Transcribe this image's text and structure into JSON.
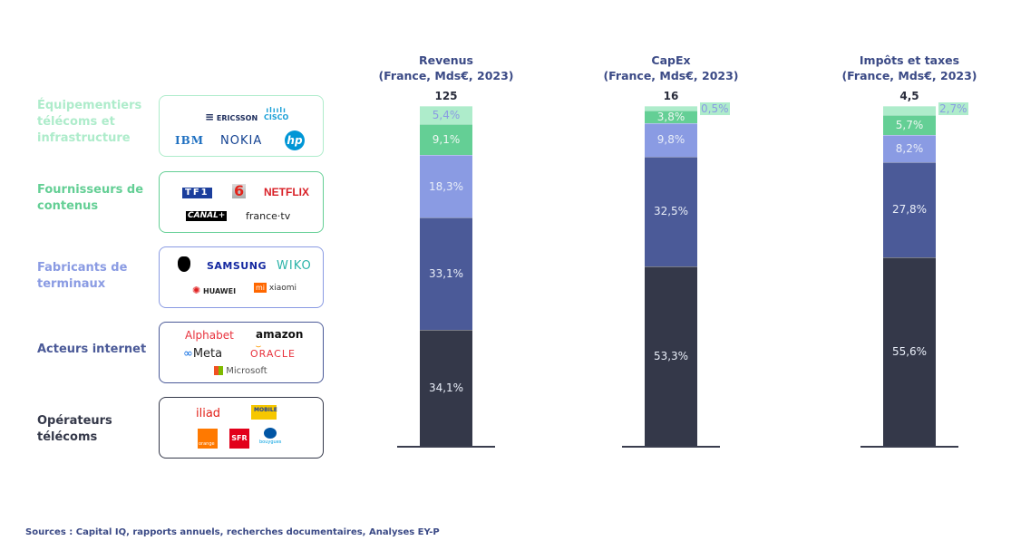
{
  "categories": [
    {
      "id": "equipementiers",
      "label": "Équipementiers télécoms et infrastructure",
      "label_lines": [
        "Équipementiers",
        "télécoms et",
        "infrastructure"
      ],
      "color": "#aeeccb",
      "logos": [
        "ERICSSON",
        "CISCO",
        "IBM",
        "NOKIA",
        "hp"
      ]
    },
    {
      "id": "contenus",
      "label": "Fournisseurs de contenus",
      "label_lines": [
        "Fournisseurs de",
        "contenus"
      ],
      "color": "#64cf95",
      "logos": [
        "TF1",
        "M6",
        "NETFLIX",
        "CANAL+",
        "france·tv"
      ]
    },
    {
      "id": "terminaux",
      "label": "Fabricants de terminaux",
      "label_lines": [
        "Fabricants de",
        "terminaux"
      ],
      "color": "#8a9be3",
      "logos": [
        "Apple",
        "SAMSUNG",
        "WIKO",
        "HUAWEI",
        "xiaomi"
      ]
    },
    {
      "id": "internet",
      "label": "Acteurs internet",
      "label_lines": [
        "Acteurs internet"
      ],
      "color": "#4b5a98",
      "logos": [
        "Alphabet",
        "amazon",
        "Meta",
        "ORACLE",
        "Microsoft"
      ]
    },
    {
      "id": "operateurs",
      "label": "Opérateurs télécoms",
      "label_lines": [
        "Opérateurs",
        "télécoms"
      ],
      "color": "#343849",
      "logos": [
        "iliad",
        "La Poste Mobile",
        "orange",
        "SFR",
        "bouygues"
      ]
    }
  ],
  "chart_data": {
    "type": "bar",
    "stacked": true,
    "normalized": true,
    "series_order_bottom_to_top": [
      "Opérateurs télécoms",
      "Acteurs internet",
      "Fabricants de terminaux",
      "Fournisseurs de contenus",
      "Équipementiers télécoms et infrastructure"
    ],
    "charts": [
      {
        "title_lines": [
          "Revenus",
          "(France, Mds€, 2023)"
        ],
        "total": "125",
        "values": [
          34.1,
          33.1,
          18.3,
          9.1,
          5.4
        ],
        "labels": [
          "34,1%",
          "33,1%",
          "18,3%",
          "9,1%",
          "5,4%"
        ],
        "outside_label_index": null
      },
      {
        "title_lines": [
          "CapEx",
          "(France, Mds€, 2023)"
        ],
        "total": "16",
        "values": [
          53.3,
          32.5,
          9.8,
          3.8,
          0.5
        ],
        "labels": [
          "53,3%",
          "32,5%",
          "9,8%",
          "3,8%",
          "0,5%"
        ],
        "outside_label_index": 4
      },
      {
        "title_lines": [
          "Impôts et taxes",
          "(France, Mds€, 2023)"
        ],
        "total": "4,5",
        "values": [
          55.6,
          27.8,
          8.2,
          5.7,
          2.7
        ],
        "labels": [
          "55,6%",
          "27,8%",
          "8,2%",
          "5,7%",
          "2,7%"
        ],
        "outside_label_index": 4
      }
    ],
    "label_colors": [
      "#e9eef8",
      "#e9eef8",
      "#e9eef8",
      "#eef7f2",
      "#8a9be3"
    ],
    "xlabel": "",
    "ylabel": "",
    "ylim": [
      0,
      100
    ]
  },
  "footer": "Sources : Capital IQ, rapports annuels, recherches documentaires, Analyses EY-P"
}
